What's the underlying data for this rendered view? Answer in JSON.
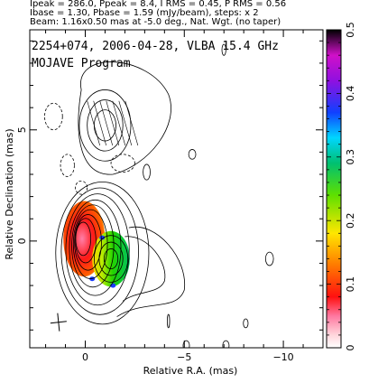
{
  "header": {
    "line1": "Ipeak = 286.0, Ppeak = 8.4, I RMS = 0.45, P RMS = 0.56",
    "line2": "Ibase = 1.30, Pbase = 1.59 (mJy/beam), steps: x 2",
    "line3": "Beam: 1.16x0.50 mas at -5.0 deg., Nat. Wgt. (no taper)"
  },
  "chart_data": {
    "type": "heatmap",
    "title": "2254+074, 2006-04-28, VLBA 15.4 GHz",
    "subtitle": "MOJAVE Program",
    "xlabel": "Relative R.A. (mas)",
    "ylabel": "Relative Declination (mas)",
    "xlim": [
      2.8,
      -12
    ],
    "ylim": [
      -4.8,
      9.5
    ],
    "xticks": [
      0,
      -5,
      -10
    ],
    "xtick_labels": [
      "0",
      "−5",
      "−10"
    ],
    "yticks": [
      0,
      5
    ],
    "ytick_labels": [
      "0",
      "5"
    ],
    "colorbar": {
      "range": [
        0,
        0.5
      ],
      "ticks": [
        0,
        0.1,
        0.2,
        0.3,
        0.4,
        0.5
      ],
      "tick_labels": [
        "0",
        "0.1",
        "0.2",
        "0.3",
        "0.4",
        "0.5"
      ]
    },
    "core_contours": {
      "center": [
        0.1,
        0.1
      ],
      "radii_x": [
        0.38,
        0.52,
        0.68,
        0.86,
        1.06,
        1.3,
        1.6,
        1.95,
        2.35
      ],
      "radii_y": [
        0.75,
        1.0,
        1.25,
        1.55,
        1.85,
        2.15,
        2.5,
        2.85,
        3.2
      ]
    },
    "component": {
      "center": [
        -1.3,
        -0.8
      ],
      "radii_x": [
        0.35,
        0.6,
        0.85
      ],
      "radii_y": [
        0.45,
        0.75,
        1.05
      ]
    },
    "jet_knot": {
      "center": [
        -1.0,
        5.2
      ],
      "radii_x": [
        0.55,
        0.9,
        1.3
      ],
      "radii_y": [
        0.7,
        1.15,
        1.6
      ]
    },
    "beam": {
      "center": [
        1.35,
        -3.65
      ],
      "major": 1.16,
      "minor": 0.5,
      "pa": -5.0
    }
  }
}
